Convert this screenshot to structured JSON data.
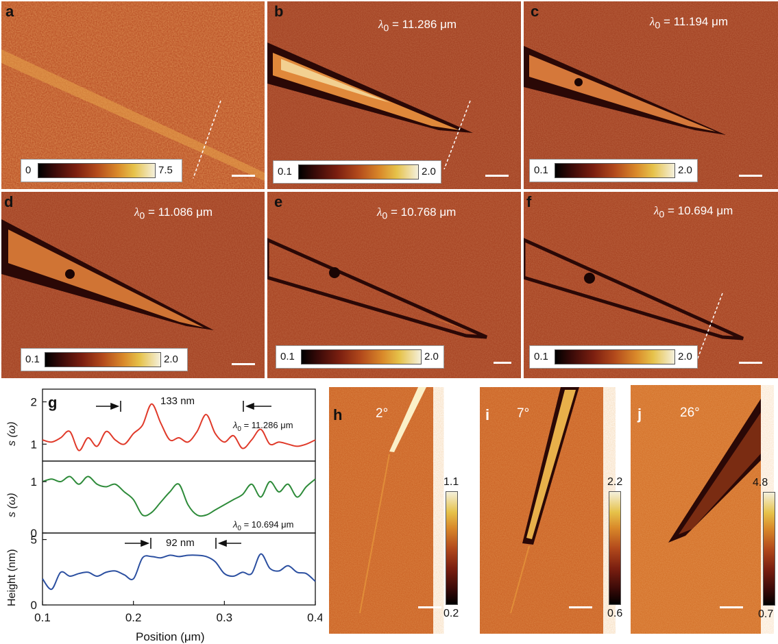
{
  "panels": {
    "a": {
      "label": "a",
      "cbar_min": "0",
      "cbar_max": "7.5"
    },
    "b": {
      "label": "b",
      "wavelength": "11.286 μm",
      "cbar_min": "0.1",
      "cbar_max": "2.0"
    },
    "c": {
      "label": "c",
      "wavelength": "11.194 μm",
      "cbar_min": "0.1",
      "cbar_max": "2.0"
    },
    "d": {
      "label": "d",
      "wavelength": "11.086 μm",
      "cbar_min": "0.1",
      "cbar_max": "2.0"
    },
    "e": {
      "label": "e",
      "wavelength": "10.768 μm",
      "cbar_min": "0.1",
      "cbar_max": "2.0"
    },
    "f": {
      "label": "f",
      "wavelength": "10.694 μm",
      "cbar_min": "0.1",
      "cbar_max": "2.0"
    },
    "h": {
      "label": "h",
      "angle": "2°",
      "cbar_max": "1.1",
      "cbar_min": "0.2"
    },
    "i": {
      "label": "i",
      "angle": "7°",
      "cbar_max": "2.2",
      "cbar_min": "0.6"
    },
    "j": {
      "label": "j",
      "angle": "26°",
      "cbar_max": "4.8",
      "cbar_min": "0.7"
    }
  },
  "lambda_prefix": "λ",
  "lambda_sub": "0",
  "lambda_eq": " = ",
  "panel_g": {
    "label": "g",
    "top_annotation": "133 nm",
    "bottom_annotation": "92 nm",
    "top_wavelength": "11.286 μm",
    "mid_wavelength": "10.694 μm",
    "ylabel_top": "s (ω)",
    "ylabel_mid": "s (ω)",
    "ylabel_bottom": "Height (nm)",
    "xlabel": "Position (μm)",
    "x_ticks": [
      "0.1",
      "0.2",
      "0.3",
      "0.4"
    ],
    "top_yticks": [
      "1",
      "2"
    ],
    "mid_yticks": [
      "0",
      "1"
    ],
    "bottom_yticks": [
      "0",
      "5"
    ]
  },
  "colors": {
    "series_top": "#e03a2a",
    "series_mid": "#2e8b3a",
    "series_bottom": "#2b4fa0"
  },
  "chart_data": {
    "type": "line",
    "x": [
      0.1,
      0.11,
      0.12,
      0.13,
      0.14,
      0.15,
      0.16,
      0.17,
      0.18,
      0.19,
      0.2,
      0.21,
      0.22,
      0.23,
      0.24,
      0.25,
      0.26,
      0.27,
      0.28,
      0.29,
      0.3,
      0.31,
      0.32,
      0.33,
      0.34,
      0.35,
      0.36,
      0.37,
      0.38,
      0.39,
      0.4
    ],
    "xlim": [
      0.1,
      0.4
    ],
    "series": [
      {
        "name": "λ0 = 11.286 μm",
        "ylim": [
          0.6,
          2.3
        ],
        "values": [
          1.1,
          1.05,
          1.15,
          1.3,
          0.85,
          1.15,
          0.95,
          1.3,
          1.1,
          1.0,
          1.25,
          1.45,
          1.95,
          1.5,
          1.1,
          1.15,
          1.05,
          1.3,
          1.7,
          1.25,
          1.05,
          1.2,
          0.9,
          1.1,
          1.35,
          1.0,
          1.05,
          1.0,
          0.95,
          1.0,
          1.1
        ]
      },
      {
        "name": "λ0 = 10.694 μm",
        "ylim": [
          0,
          1.4
        ],
        "values": [
          1.0,
          1.05,
          1.0,
          1.1,
          0.95,
          1.1,
          0.95,
          0.9,
          0.95,
          0.8,
          0.65,
          0.35,
          0.4,
          0.6,
          0.8,
          0.95,
          0.55,
          0.35,
          0.35,
          0.45,
          0.55,
          0.65,
          0.75,
          0.95,
          0.7,
          1.0,
          0.8,
          0.95,
          0.7,
          0.9,
          1.05
        ]
      },
      {
        "name": "Height",
        "ylim": [
          0,
          5.5
        ],
        "values": [
          2.0,
          1.2,
          2.5,
          2.2,
          2.4,
          2.5,
          2.2,
          2.5,
          2.6,
          2.3,
          2.0,
          3.6,
          3.7,
          3.6,
          3.8,
          3.7,
          3.8,
          3.8,
          3.7,
          3.3,
          2.4,
          2.2,
          2.5,
          2.4,
          3.9,
          2.8,
          2.6,
          3.0,
          2.5,
          2.4,
          1.8
        ]
      }
    ],
    "xlabel": "Position (μm)"
  }
}
